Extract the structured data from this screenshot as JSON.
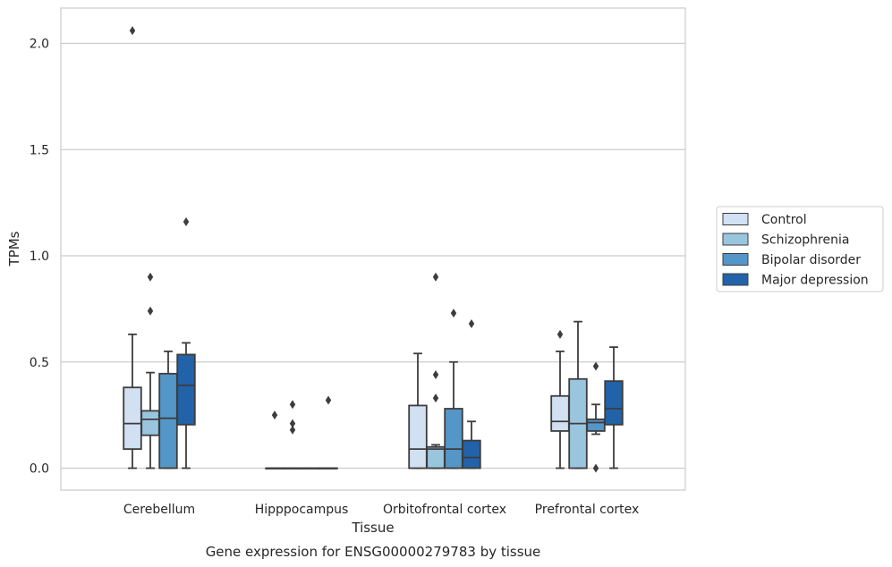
{
  "chart_data": {
    "type": "box",
    "xlabel": "Tissue",
    "ylabel": "TPMs",
    "caption": "Gene expression for ENSG00000279783 by tissue",
    "categories": [
      "Cerebellum",
      "Hipppocampus",
      "Orbitofrontal cortex",
      "Prefrontal cortex"
    ],
    "ylim": [
      -0.1,
      2.17
    ],
    "yticks": [
      0.0,
      0.5,
      1.0,
      1.5,
      2.0
    ],
    "ytick_labels": [
      "0.0",
      "0.5",
      "1.0",
      "1.5",
      "2.0"
    ],
    "grid": "horizontal",
    "legend_position": "center-right",
    "series": [
      {
        "name": "Control",
        "color": "#d1e1f2",
        "boxes": [
          {
            "min": 0.0,
            "q1": 0.09,
            "median": 0.21,
            "q3": 0.38,
            "max": 0.63,
            "outliers": [
              2.06
            ]
          },
          {
            "min": 0.0,
            "q1": 0.0,
            "median": 0.0,
            "q3": 0.0,
            "max": 0.0,
            "outliers": [
              0.25
            ]
          },
          {
            "min": 0.0,
            "q1": 0.0,
            "median": 0.09,
            "q3": 0.295,
            "max": 0.54,
            "outliers": []
          },
          {
            "min": 0.0,
            "q1": 0.175,
            "median": 0.22,
            "q3": 0.34,
            "max": 0.55,
            "outliers": [
              0.63
            ]
          }
        ]
      },
      {
        "name": "Schizophrenia",
        "color": "#9ac5df",
        "boxes": [
          {
            "min": 0.0,
            "q1": 0.155,
            "median": 0.23,
            "q3": 0.27,
            "max": 0.45,
            "outliers": [
              0.74,
              0.9
            ]
          },
          {
            "min": 0.0,
            "q1": 0.0,
            "median": 0.0,
            "q3": 0.0,
            "max": 0.0,
            "outliers": [
              0.18,
              0.21,
              0.3
            ]
          },
          {
            "min": 0.0,
            "q1": 0.0,
            "median": 0.09,
            "q3": 0.1,
            "max": 0.11,
            "outliers": [
              0.33,
              0.44,
              0.9
            ]
          },
          {
            "min": 0.0,
            "q1": 0.0,
            "median": 0.21,
            "q3": 0.42,
            "max": 0.69,
            "outliers": []
          }
        ]
      },
      {
        "name": "Bipolar disorder",
        "color": "#5496c8",
        "boxes": [
          {
            "min": 0.0,
            "q1": 0.0,
            "median": 0.235,
            "q3": 0.445,
            "max": 0.55,
            "outliers": []
          },
          {
            "min": 0.0,
            "q1": 0.0,
            "median": 0.0,
            "q3": 0.0,
            "max": 0.0,
            "outliers": []
          },
          {
            "min": 0.0,
            "q1": 0.0,
            "median": 0.09,
            "q3": 0.28,
            "max": 0.5,
            "outliers": [
              0.73
            ]
          },
          {
            "min": 0.16,
            "q1": 0.175,
            "median": 0.215,
            "q3": 0.23,
            "max": 0.3,
            "outliers": [
              0.48,
              0.0
            ]
          }
        ]
      },
      {
        "name": "Major depression",
        "color": "#2262a9",
        "boxes": [
          {
            "min": 0.0,
            "q1": 0.205,
            "median": 0.39,
            "q3": 0.535,
            "max": 0.59,
            "outliers": [
              1.16
            ]
          },
          {
            "min": 0.0,
            "q1": 0.0,
            "median": 0.0,
            "q3": 0.0,
            "max": 0.0,
            "outliers": [
              0.32
            ]
          },
          {
            "min": 0.0,
            "q1": 0.0,
            "median": 0.05,
            "q3": 0.13,
            "max": 0.22,
            "outliers": [
              0.68
            ]
          },
          {
            "min": 0.0,
            "q1": 0.205,
            "median": 0.28,
            "q3": 0.41,
            "max": 0.57,
            "outliers": []
          }
        ]
      }
    ]
  }
}
